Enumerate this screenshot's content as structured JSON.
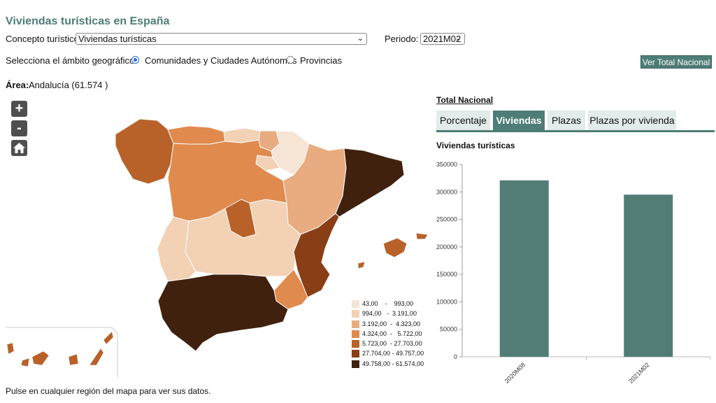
{
  "title": "Viviendas turísticas en España",
  "concept": {
    "label": "Concepto turístico",
    "value": "Viviendas turísticas"
  },
  "period": {
    "label": "Periodo:",
    "value": "2021M02"
  },
  "scope": {
    "label": "Selecciona el ámbito geográfico:",
    "options": [
      "Comunidades y Ciudades Autónomas",
      "Provincias"
    ],
    "selected": "Comunidades y Ciudades Autónomas"
  },
  "ver_total_button": "Ver Total Nacional",
  "area": {
    "label": "Área:",
    "value": "Andalucía (61.574 )"
  },
  "map_controls": {
    "zoom_in": "+",
    "zoom_out": "-",
    "home": "home-icon"
  },
  "legend": [
    {
      "range": "43,00    -    993,00",
      "color": "#f6e4d4"
    },
    {
      "range": "994,00   -  3.191,00",
      "color": "#f2d1b5"
    },
    {
      "range": "3.192,00  -  4.323,00",
      "color": "#e8ac80"
    },
    {
      "range": "4.324,00  -   5.722,00",
      "color": "#e08a4e"
    },
    {
      "range": "5.723,00  - 27.703,00",
      "color": "#b8622a"
    },
    {
      "range": "27.704,00 - 49.757,00",
      "color": "#8a3e15"
    },
    {
      "range": "49.758,00 - 61.574,00",
      "color": "#3f210e"
    }
  ],
  "total_nacional": {
    "title": "Total Nacional",
    "tabs": [
      "Porcentaje",
      "Viviendas",
      "Plazas",
      "Plazas por vivienda"
    ],
    "active_tab": "Viviendas",
    "chart_title": "Viviendas turísticas"
  },
  "chart_data": {
    "type": "bar",
    "categories": [
      "2020M08",
      "2021M02"
    ],
    "values": [
      321000,
      295000
    ],
    "ylim": [
      0,
      350000
    ],
    "yticks": [
      0,
      50000,
      100000,
      150000,
      200000,
      250000,
      300000,
      350000
    ],
    "bar_color": "#527d77"
  },
  "footer": "Pulse en cualquier región del mapa para ver sus datos."
}
